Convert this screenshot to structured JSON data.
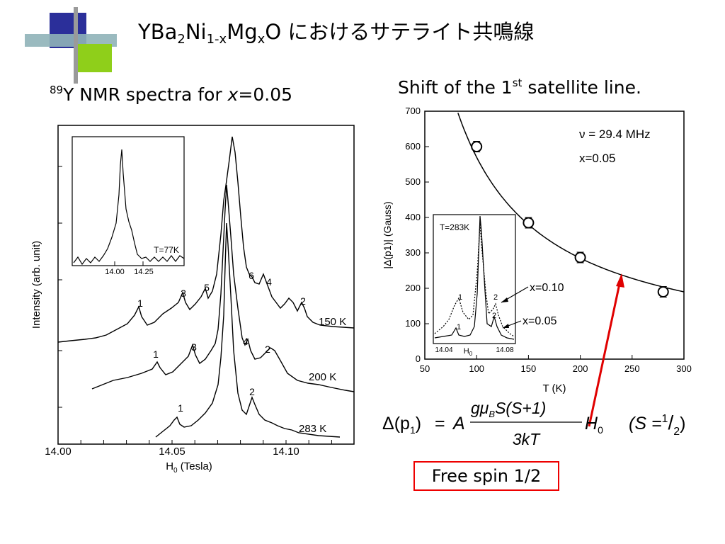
{
  "slide": {
    "title_main": "YBa",
    "title_sub1": "2",
    "title_part2": "Ni",
    "title_sub2": "1-x",
    "title_part3": "Mg",
    "title_sub3": "x",
    "title_part4": "O におけるサテライト共鳴線",
    "left_subtitle_sup": "89",
    "left_subtitle_a": "Y NMR spectra for ",
    "left_subtitle_var": "x",
    "left_subtitle_b": "=0.05",
    "right_subtitle_a": "Shift of the 1",
    "right_subtitle_sup": "st",
    "right_subtitle_b": " satellite line.",
    "free_spin_label": "Free spin 1/2",
    "colors": {
      "accent_red": "#e00000",
      "deco_blue": "#2b2f9a",
      "deco_green": "#8fcf1a"
    }
  },
  "formula": {
    "lhs_a": "Δ",
    "lhs_b": "(p",
    "lhs_sub": "1",
    "lhs_c": ")",
    "equals": "=",
    "coef": "A",
    "num_a": "gμ",
    "num_sub": "B",
    "num_b": "S(S+1)",
    "den": "3kT",
    "field": "H",
    "field_sub": "0",
    "cond_a": "(S =",
    "cond_num": "1",
    "cond_slash": "/",
    "cond_den": "2",
    "cond_b": ")"
  },
  "chart_data": [
    {
      "type": "line",
      "xlabel_main": "H",
      "xlabel_sub": "0",
      "xlabel_unit": " (Tesla)",
      "ylabel": "Intensity (arb. unit)",
      "xlim": [
        14.0,
        14.13
      ],
      "xticks": [
        "14.00",
        "14.05",
        "14.10"
      ],
      "series": [
        {
          "name": "150 K",
          "peak_labels": [
            "1",
            "3",
            "5",
            "6",
            "4",
            "2"
          ]
        },
        {
          "name": "200 K",
          "peak_labels": [
            "1",
            "3",
            "4",
            "2"
          ]
        },
        {
          "name": "283 K",
          "peak_labels": [
            "1",
            "2"
          ]
        }
      ],
      "inset": {
        "label": "T=77K",
        "xticks": [
          "14.00",
          "14.25"
        ]
      }
    },
    {
      "type": "scatter",
      "xlabel": "T (K)",
      "ylabel": "|Δ(p1)| (Gauss)",
      "xlim": [
        50,
        300
      ],
      "ylim": [
        0,
        700
      ],
      "xticks": [
        50,
        100,
        150,
        200,
        250,
        300
      ],
      "yticks": [
        0,
        100,
        200,
        300,
        400,
        500,
        600,
        700
      ],
      "x": [
        100,
        150,
        200,
        280
      ],
      "y": [
        600,
        385,
        287,
        190
      ],
      "fit_curve": "C/T",
      "annotation_freq": "ν = 29.4 MHz",
      "annotation_x": "x=0.05",
      "inset": {
        "label": "T=283K",
        "xtick_a": "14.04",
        "xtick_b": "14.08",
        "xlabel_main": "H",
        "xlabel_sub": "0",
        "peak_labels": [
          "1",
          "1",
          "2",
          "2"
        ],
        "series_labels": [
          "x=0.10",
          "x=0.05"
        ]
      }
    }
  ]
}
